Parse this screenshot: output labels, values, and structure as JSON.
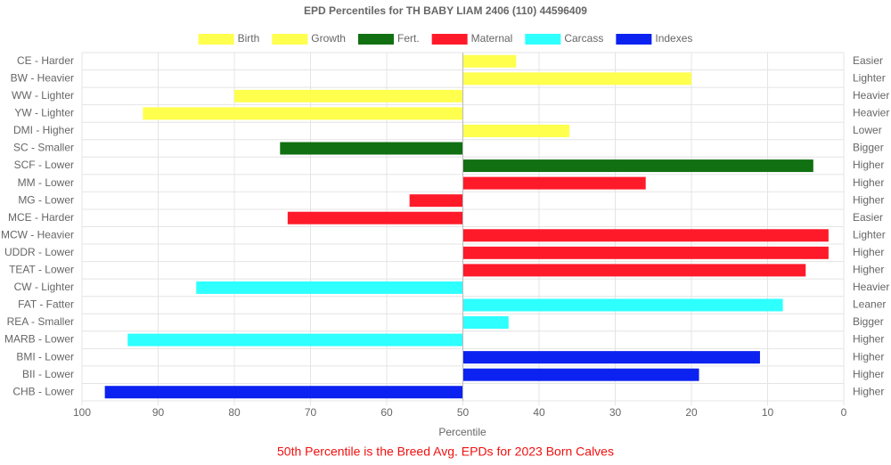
{
  "chart_data": {
    "type": "bar",
    "orientation": "horizontal",
    "title": "EPD Percentiles for TH BABY LIAM 2406 (110) 44596409",
    "x_label": "Percentile",
    "footnote": "50th Percentile is the Breed Avg. EPDs for 2023 Born Calves",
    "categories": [
      "CE - Harder",
      "BW - Heavier",
      "WW - Lighter",
      "YW - Lighter",
      "DMI - Higher",
      "SC - Smaller",
      "SCF - Lower",
      "MM - Lower",
      "MG - Lower",
      "MCE - Harder",
      "MCW - Heavier",
      "UDDR - Lower",
      "TEAT - Lower",
      "CW - Lighter",
      "FAT - Fatter",
      "REA - Smaller",
      "MARB - Lower",
      "BMI - Lower",
      "BII - Lower",
      "CHB - Lower"
    ],
    "right_labels": [
      "Easier",
      "Lighter",
      "Heavier",
      "Heavier",
      "Lower",
      "Bigger",
      "Higher",
      "Higher",
      "Higher",
      "Easier",
      "Lighter",
      "Higher",
      "Higher",
      "Heavier",
      "Leaner",
      "Bigger",
      "Higher",
      "Higher",
      "Higher",
      "Higher"
    ],
    "baseline": 50,
    "series": [
      {
        "name": "Birth",
        "color": "#ffff4d",
        "values": [
          43,
          20,
          null,
          null,
          null,
          null,
          null,
          null,
          null,
          null,
          null,
          null,
          null,
          null,
          null,
          null,
          null,
          null,
          null,
          null
        ]
      },
      {
        "name": "Growth",
        "color": "#ffff4d",
        "values": [
          null,
          null,
          80,
          92,
          36,
          null,
          null,
          null,
          null,
          null,
          null,
          null,
          null,
          null,
          null,
          null,
          null,
          null,
          null,
          null
        ]
      },
      {
        "name": "Fert.",
        "color": "#117011",
        "values": [
          null,
          null,
          null,
          null,
          null,
          74,
          4,
          null,
          null,
          null,
          null,
          null,
          null,
          null,
          null,
          null,
          null,
          null,
          null,
          null
        ]
      },
      {
        "name": "Maternal",
        "color": "#ff1a2a",
        "values": [
          null,
          null,
          null,
          null,
          null,
          null,
          null,
          26,
          57,
          73,
          2,
          2,
          5,
          null,
          null,
          null,
          null,
          null,
          null,
          null
        ]
      },
      {
        "name": "Carcass",
        "color": "#2effff",
        "values": [
          null,
          null,
          null,
          null,
          null,
          null,
          null,
          null,
          null,
          null,
          null,
          null,
          null,
          85,
          8,
          44,
          94,
          null,
          null,
          null
        ]
      },
      {
        "name": "Indexes",
        "color": "#0b22f0",
        "values": [
          null,
          null,
          null,
          null,
          null,
          null,
          null,
          null,
          null,
          null,
          null,
          null,
          null,
          null,
          null,
          null,
          null,
          11,
          19,
          97
        ]
      }
    ],
    "xlim": [
      100,
      0
    ],
    "xticks": [
      100,
      90,
      80,
      70,
      60,
      50,
      40,
      30,
      20,
      10,
      0
    ],
    "grid": true,
    "legend": "top"
  }
}
